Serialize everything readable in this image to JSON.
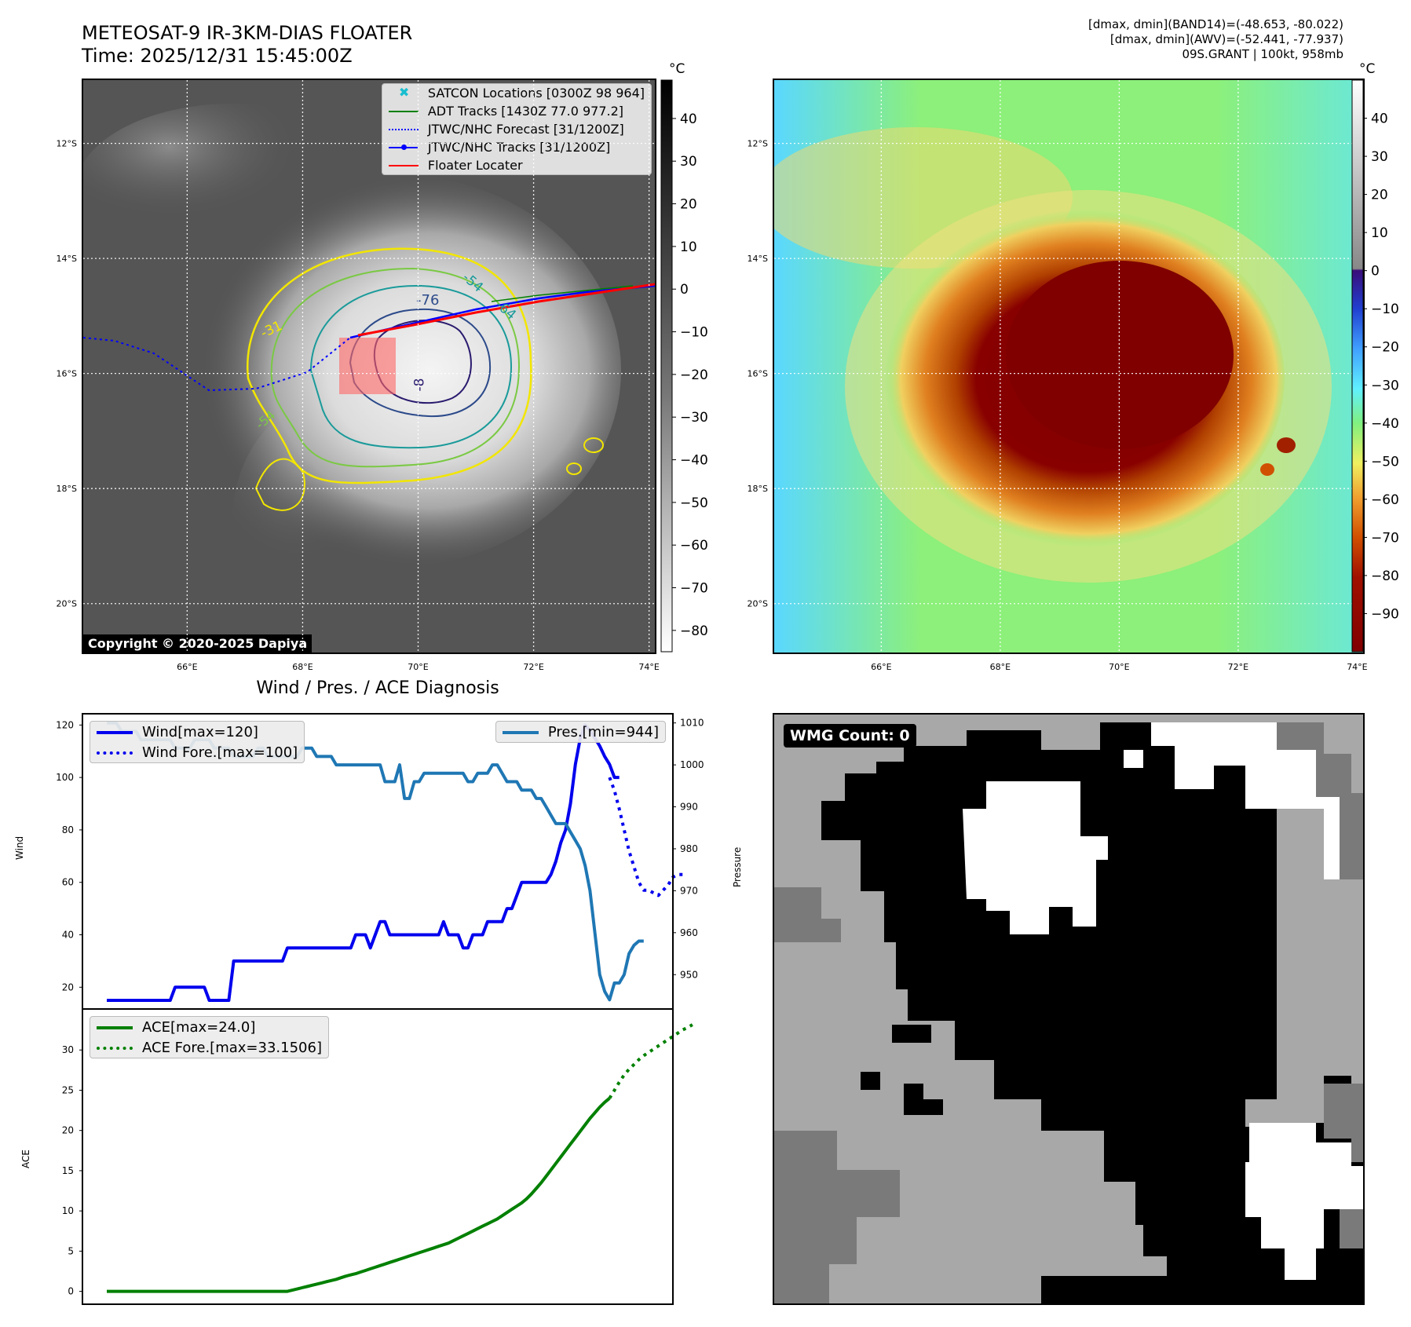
{
  "header": {
    "title_line1": "METEOSAT-9 IR-3KM-DIAS FLOATER",
    "title_line2": "Time: 2025/12/31 15:45:00Z",
    "info_line1": "[dmax, dmin](BAND14)=(-48.653, -80.022)",
    "info_line2": "[dmax, dmin](AWV)=(-52.441, -77.937)",
    "info_line3": "09S.GRANT | 100kt, 958mb"
  },
  "map": {
    "lon_ticks": [
      "66°E",
      "68°E",
      "70°E",
      "72°E",
      "74°E"
    ],
    "lat_ticks": [
      "12°S",
      "14°S",
      "16°S",
      "18°S",
      "20°S"
    ],
    "lon_values": [
      66,
      68,
      70,
      72,
      74
    ],
    "lat_values": [
      12,
      14,
      16,
      18,
      20
    ],
    "lon_range": [
      64.2,
      74.1
    ],
    "lat_range": [
      10.9,
      20.85
    ],
    "copyright": "Copyright © 2020-2025 Dapiya",
    "contour_labels": [
      "-76",
      "-54",
      "-64",
      "-31",
      "-54",
      "-8"
    ],
    "legend": [
      {
        "label": "SATCON Locations [0300Z 98 964]",
        "color": "#17becf",
        "style": "marker-x"
      },
      {
        "label": "ADT Tracks [1430Z 77.0 977.2]",
        "color": "#008000",
        "style": "solid"
      },
      {
        "label": "JTWC/NHC Forecast [31/1200Z]",
        "color": "#0000ff",
        "style": "dotted"
      },
      {
        "label": "JTWC/NHC Tracks [31/1200Z]",
        "color": "#0000ff",
        "style": "solid-dot"
      },
      {
        "label": "Floater Locater",
        "color": "#ff0000",
        "style": "solid"
      }
    ],
    "ir_colorbar": {
      "unit": "°C",
      "ticks": [
        "40",
        "30",
        "20",
        "10",
        "0",
        "−10",
        "−20",
        "−30",
        "−40",
        "−50",
        "−60",
        "−70",
        "−80"
      ],
      "tick_values": [
        40,
        30,
        20,
        10,
        0,
        -10,
        -20,
        -30,
        -40,
        -50,
        -60,
        -70,
        -80
      ],
      "range": [
        49,
        -85
      ]
    },
    "color_colorbar": {
      "unit": "°C",
      "ticks": [
        "40",
        "30",
        "20",
        "10",
        "0",
        "−10",
        "−20",
        "−30",
        "−40",
        "−50",
        "−60",
        "−70",
        "−80",
        "−90"
      ],
      "tick_values": [
        40,
        30,
        20,
        10,
        0,
        -10,
        -20,
        -30,
        -40,
        -50,
        -60,
        -70,
        -80,
        -90
      ],
      "range": [
        50,
        -100
      ]
    }
  },
  "chart_data": [
    {
      "type": "line",
      "title": "Wind / Pres. / ACE Diagnosis",
      "ylabel": "Wind",
      "y2label": "Pressure",
      "ylim": [
        12,
        124
      ],
      "y2lim": [
        942,
        1012
      ],
      "yticks": [
        20,
        40,
        60,
        80,
        100,
        120
      ],
      "y2ticks": [
        950,
        960,
        970,
        980,
        990,
        1000,
        1010
      ],
      "x_count": 112,
      "series": [
        {
          "name": "Wind[max=120]",
          "color": "#0000ee",
          "style": "solid",
          "x_start": 0,
          "values": [
            15,
            15,
            15,
            15,
            15,
            15,
            15,
            15,
            15,
            15,
            15,
            15,
            15,
            15,
            20,
            20,
            20,
            20,
            20,
            20,
            20,
            15,
            15,
            15,
            15,
            15,
            30,
            30,
            30,
            30,
            30,
            30,
            30,
            30,
            30,
            30,
            30,
            35,
            35,
            35,
            35,
            35,
            35,
            35,
            35,
            35,
            35,
            35,
            35,
            35,
            35,
            40,
            40,
            40,
            35,
            40,
            45,
            45,
            40,
            40,
            40,
            40,
            40,
            40,
            40,
            40,
            40,
            40,
            40,
            45,
            40,
            40,
            40,
            35,
            35,
            40,
            40,
            40,
            45,
            45,
            45,
            45,
            50,
            50,
            55,
            60,
            60,
            60,
            60,
            60,
            60,
            63,
            68,
            75,
            80,
            90,
            105,
            115,
            120,
            118,
            115,
            112,
            108,
            105,
            100,
            100
          ]
        },
        {
          "name": "Wind Fore.[max=100]",
          "color": "#0000ee",
          "style": "dotted",
          "x_start": 103,
          "values": [
            100,
            95,
            88,
            80,
            72,
            66,
            60,
            57,
            57,
            56,
            55,
            57,
            59,
            62,
            63,
            63
          ]
        },
        {
          "name": "Pres.[min=944]",
          "color": "#1f77b4",
          "style": "solid",
          "axis": "right",
          "x_start": 0,
          "values": [
            1010,
            1010,
            1010,
            1008,
            1008,
            1008,
            1008,
            1006,
            1006,
            1006,
            1006,
            1006,
            1006,
            1006,
            1004,
            1004,
            1004,
            1004,
            1006,
            1006,
            1006,
            1006,
            1004,
            1004,
            1004,
            1004,
            1002,
            1002,
            1002,
            1002,
            1002,
            1004,
            1004,
            1002,
            1002,
            1002,
            1002,
            1002,
            1002,
            1002,
            1004,
            1004,
            1004,
            1002,
            1002,
            1002,
            1002,
            1000,
            1000,
            1000,
            1000,
            1000,
            1000,
            1000,
            1000,
            1000,
            1000,
            996,
            996,
            996,
            1000,
            992,
            992,
            996,
            996,
            998,
            998,
            998,
            998,
            998,
            998,
            998,
            998,
            998,
            996,
            996,
            998,
            998,
            998,
            1000,
            1000,
            998,
            996,
            996,
            996,
            994,
            994,
            994,
            992,
            992,
            990,
            988,
            986,
            986,
            986,
            984,
            982,
            980,
            976,
            970,
            960,
            950,
            946,
            944,
            948,
            948,
            950,
            955,
            957,
            958,
            958
          ]
        }
      ]
    },
    {
      "type": "line",
      "ylabel": "ACE",
      "ylim": [
        -1.5,
        35
      ],
      "yticks": [
        0,
        5,
        10,
        15,
        20,
        25,
        30
      ],
      "x_count": 112,
      "series": [
        {
          "name": "ACE[max=24.0]",
          "color": "#008000",
          "style": "solid",
          "x_start": 0,
          "values": [
            0,
            0,
            0,
            0,
            0,
            0,
            0,
            0,
            0,
            0,
            0,
            0,
            0,
            0,
            0,
            0,
            0,
            0,
            0,
            0,
            0,
            0,
            0,
            0,
            0,
            0,
            0,
            0,
            0,
            0,
            0,
            0,
            0,
            0,
            0,
            0,
            0,
            0,
            0.15,
            0.3,
            0.45,
            0.6,
            0.75,
            0.9,
            1.05,
            1.2,
            1.35,
            1.5,
            1.7,
            1.9,
            2.05,
            2.2,
            2.4,
            2.6,
            2.8,
            3.0,
            3.2,
            3.4,
            3.6,
            3.8,
            4.0,
            4.2,
            4.4,
            4.6,
            4.8,
            5.0,
            5.2,
            5.4,
            5.6,
            5.8,
            6.0,
            6.3,
            6.6,
            6.9,
            7.2,
            7.5,
            7.8,
            8.1,
            8.4,
            8.7,
            9.0,
            9.4,
            9.8,
            10.2,
            10.6,
            11.0,
            11.5,
            12.1,
            12.8,
            13.5,
            14.3,
            15.1,
            15.9,
            16.7,
            17.5,
            18.3,
            19.1,
            19.9,
            20.7,
            21.5,
            22.2,
            22.9,
            23.5,
            24.0
          ]
        },
        {
          "name": "ACE Fore.[max=33.1506]",
          "color": "#008000",
          "style": "dotted",
          "x_start": 103,
          "values": [
            24.0,
            25.0,
            26.0,
            26.9,
            27.6,
            28.2,
            28.8,
            29.3,
            29.7,
            30.1,
            30.5,
            30.9,
            31.3,
            31.7,
            32.1,
            32.5,
            32.8,
            33.15
          ]
        }
      ]
    }
  ],
  "wmg": {
    "label": "WMG Count: 0"
  }
}
